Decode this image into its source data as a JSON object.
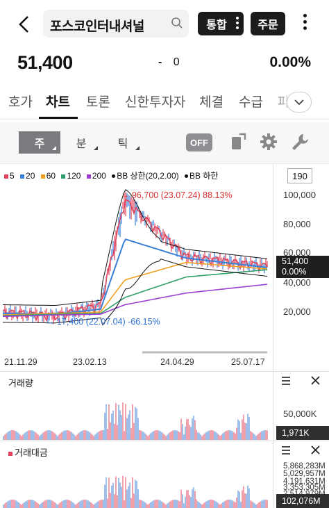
{
  "header": {
    "stock_name": "포스코인터내셔널",
    "tonghap_label": "통합",
    "order_label": "주문",
    "icons": [
      "back-chevron-icon",
      "search-icon",
      "kebab-menu-icon"
    ]
  },
  "quote": {
    "price": "51,400",
    "change_sign": "-",
    "change_value": "0",
    "change_rate": "0.00%"
  },
  "tabs": [
    {
      "label": "호가"
    },
    {
      "label": "차트"
    },
    {
      "label": "토론"
    },
    {
      "label": "신한투자자"
    },
    {
      "label": "체결"
    },
    {
      "label": "수급"
    },
    {
      "label": "파"
    }
  ],
  "toolbar": {
    "periods": [
      {
        "label": "주"
      },
      {
        "label": "분"
      },
      {
        "label": "틱"
      }
    ],
    "off_label": "OFF",
    "icons": [
      "share-icon",
      "gear-icon",
      "wrench-icon"
    ]
  },
  "chart": {
    "legend": [
      {
        "label": "5",
        "color": "#e0435b"
      },
      {
        "label": "20",
        "color": "#3b7fd6"
      },
      {
        "label": "60",
        "color": "#f0a020"
      },
      {
        "label": "120",
        "color": "#2f9e6b"
      },
      {
        "label": "200",
        "color": "#9b3fd0"
      },
      {
        "label": "BB 상한(20,2.00)",
        "color": "#111111"
      },
      {
        "label": "BB 하한",
        "color": "#111111"
      }
    ],
    "count_box": "190",
    "y_ticks": [
      "100,000",
      "80,000",
      "60,000",
      "40,000",
      "20,000"
    ],
    "price_tag_value": "51,400",
    "price_tag_rate": "0.00%",
    "x_ticks": [
      "21.11.29",
      "23.02.13",
      "24.04.29",
      "25.07.17"
    ],
    "high_annotation": "96,700 (23.07.24) 88.13%",
    "low_annotation": "17,400 (22.07.04) -66.15%"
  },
  "chart_data": {
    "type": "line",
    "title": "",
    "ylim": [
      0,
      110000
    ],
    "x": [
      "21.11.29",
      "22.07.04",
      "23.02.13",
      "23.07.24",
      "24.04.29",
      "25.07.17"
    ],
    "series": [
      {
        "name": "5",
        "values": [
          20000,
          17400,
          25000,
          96700,
          58000,
          51400
        ]
      },
      {
        "name": "20",
        "values": [
          19000,
          18500,
          22000,
          70000,
          57000,
          50500
        ]
      },
      {
        "name": "60",
        "values": [
          18000,
          19000,
          20000,
          42000,
          54000,
          49500
        ]
      },
      {
        "name": "120",
        "values": [
          17500,
          18500,
          19000,
          30000,
          44000,
          49000
        ]
      },
      {
        "name": "200",
        "values": [
          17000,
          18000,
          18500,
          25000,
          33000,
          39000
        ]
      }
    ],
    "annotations": [
      {
        "label": "96,700 (23.07.24) 88.13%",
        "x": "23.07.24",
        "y": 96700
      },
      {
        "label": "17,400 (22.07.04) -66.15%",
        "x": "22.07.04",
        "y": 17400
      }
    ]
  },
  "volume_pane": {
    "title": "거래량",
    "tick": "50,000K",
    "tag": "1,971K"
  },
  "amount_pane": {
    "title": "거래대금",
    "ticks": [
      "5,868,283M",
      "5,029,957M",
      "4,191,631M",
      "3,353,305M",
      "2,514,979M"
    ],
    "tag": "102,076M"
  }
}
